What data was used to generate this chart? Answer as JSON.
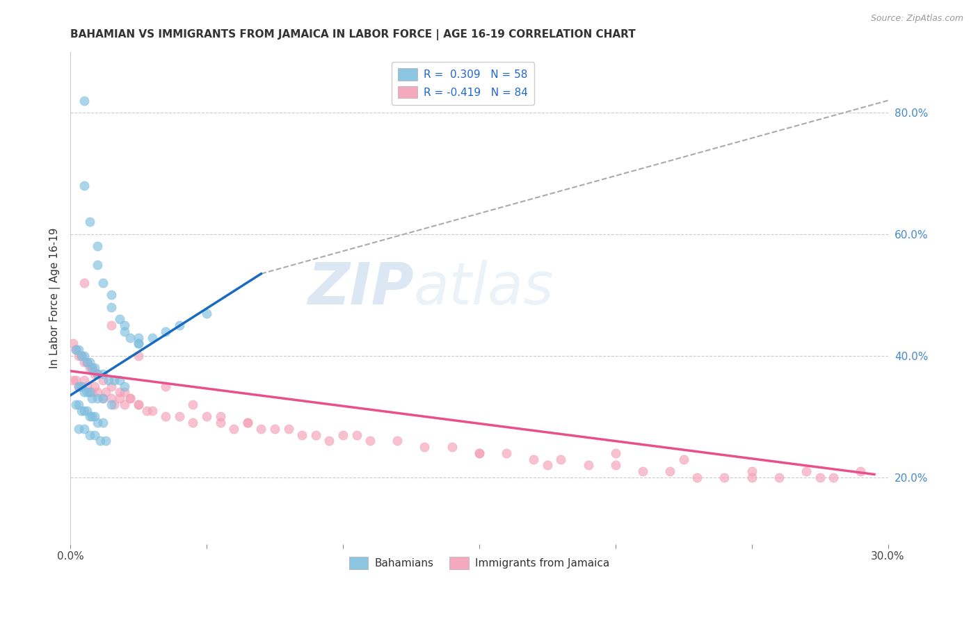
{
  "title": "BAHAMIAN VS IMMIGRANTS FROM JAMAICA IN LABOR FORCE | AGE 16-19 CORRELATION CHART",
  "source": "Source: ZipAtlas.com",
  "ylabel": "In Labor Force | Age 16-19",
  "xlim": [
    0.0,
    0.3
  ],
  "ylim": [
    0.09,
    0.9
  ],
  "right_yticks": [
    0.2,
    0.4,
    0.6,
    0.8
  ],
  "right_ytick_labels": [
    "20.0%",
    "40.0%",
    "60.0%",
    "80.0%"
  ],
  "xtick_positions": [
    0.0,
    0.05,
    0.1,
    0.15,
    0.2,
    0.25,
    0.3
  ],
  "xtick_labels": [
    "0.0%",
    "",
    "",
    "",
    "",
    "",
    "30.0%"
  ],
  "legend_blue_label": "R =  0.309   N = 58",
  "legend_pink_label": "R = -0.419   N = 84",
  "legend_bottom_blue": "Bahamians",
  "legend_bottom_pink": "Immigrants from Jamaica",
  "blue_color": "#7fbfdf",
  "pink_color": "#f4a0b8",
  "blue_line_color": "#1a6bbf",
  "pink_line_color": "#e8508a",
  "blue_scatter_x": [
    0.005,
    0.005,
    0.007,
    0.01,
    0.01,
    0.012,
    0.015,
    0.015,
    0.018,
    0.02,
    0.02,
    0.022,
    0.025,
    0.025,
    0.002,
    0.003,
    0.004,
    0.005,
    0.006,
    0.007,
    0.008,
    0.009,
    0.01,
    0.012,
    0.014,
    0.016,
    0.018,
    0.02,
    0.003,
    0.004,
    0.005,
    0.006,
    0.007,
    0.008,
    0.01,
    0.012,
    0.015,
    0.002,
    0.003,
    0.004,
    0.005,
    0.006,
    0.007,
    0.008,
    0.009,
    0.01,
    0.012,
    0.003,
    0.005,
    0.007,
    0.009,
    0.011,
    0.013,
    0.025,
    0.03,
    0.035,
    0.04,
    0.05
  ],
  "blue_scatter_y": [
    0.82,
    0.68,
    0.62,
    0.58,
    0.55,
    0.52,
    0.5,
    0.48,
    0.46,
    0.45,
    0.44,
    0.43,
    0.43,
    0.42,
    0.41,
    0.41,
    0.4,
    0.4,
    0.39,
    0.39,
    0.38,
    0.38,
    0.37,
    0.37,
    0.36,
    0.36,
    0.36,
    0.35,
    0.35,
    0.35,
    0.34,
    0.34,
    0.34,
    0.33,
    0.33,
    0.33,
    0.32,
    0.32,
    0.32,
    0.31,
    0.31,
    0.31,
    0.3,
    0.3,
    0.3,
    0.29,
    0.29,
    0.28,
    0.28,
    0.27,
    0.27,
    0.26,
    0.26,
    0.42,
    0.43,
    0.44,
    0.45,
    0.47
  ],
  "pink_scatter_x": [
    0.001,
    0.002,
    0.003,
    0.004,
    0.005,
    0.006,
    0.007,
    0.008,
    0.009,
    0.01,
    0.001,
    0.002,
    0.003,
    0.004,
    0.005,
    0.006,
    0.007,
    0.008,
    0.009,
    0.01,
    0.012,
    0.013,
    0.015,
    0.016,
    0.018,
    0.02,
    0.022,
    0.025,
    0.01,
    0.012,
    0.015,
    0.018,
    0.02,
    0.022,
    0.025,
    0.028,
    0.03,
    0.035,
    0.04,
    0.045,
    0.05,
    0.055,
    0.06,
    0.065,
    0.07,
    0.08,
    0.09,
    0.1,
    0.11,
    0.12,
    0.13,
    0.14,
    0.15,
    0.16,
    0.17,
    0.18,
    0.19,
    0.2,
    0.21,
    0.22,
    0.23,
    0.24,
    0.25,
    0.26,
    0.27,
    0.28,
    0.29,
    0.005,
    0.015,
    0.025,
    0.035,
    0.045,
    0.055,
    0.065,
    0.075,
    0.085,
    0.095,
    0.105,
    0.15,
    0.175,
    0.2,
    0.225,
    0.25,
    0.275
  ],
  "pink_scatter_y": [
    0.42,
    0.41,
    0.4,
    0.4,
    0.39,
    0.39,
    0.38,
    0.38,
    0.37,
    0.37,
    0.36,
    0.36,
    0.35,
    0.35,
    0.36,
    0.35,
    0.34,
    0.34,
    0.35,
    0.34,
    0.33,
    0.34,
    0.33,
    0.32,
    0.33,
    0.32,
    0.33,
    0.32,
    0.37,
    0.36,
    0.35,
    0.34,
    0.34,
    0.33,
    0.32,
    0.31,
    0.31,
    0.3,
    0.3,
    0.29,
    0.3,
    0.29,
    0.28,
    0.29,
    0.28,
    0.28,
    0.27,
    0.27,
    0.26,
    0.26,
    0.25,
    0.25,
    0.24,
    0.24,
    0.23,
    0.23,
    0.22,
    0.22,
    0.21,
    0.21,
    0.2,
    0.2,
    0.21,
    0.2,
    0.21,
    0.2,
    0.21,
    0.52,
    0.45,
    0.4,
    0.35,
    0.32,
    0.3,
    0.29,
    0.28,
    0.27,
    0.26,
    0.27,
    0.24,
    0.22,
    0.24,
    0.23,
    0.2,
    0.2
  ],
  "blue_trend_x": [
    0.0,
    0.07
  ],
  "blue_trend_y": [
    0.335,
    0.535
  ],
  "pink_trend_x": [
    0.0,
    0.295
  ],
  "pink_trend_y": [
    0.375,
    0.205
  ],
  "dash_trend_x": [
    0.07,
    0.3
  ],
  "dash_trend_y": [
    0.535,
    0.82
  ],
  "watermark_zip": "ZIP",
  "watermark_atlas": "atlas",
  "background_color": "#ffffff",
  "grid_color": "#cccccc",
  "grid_style": "--"
}
